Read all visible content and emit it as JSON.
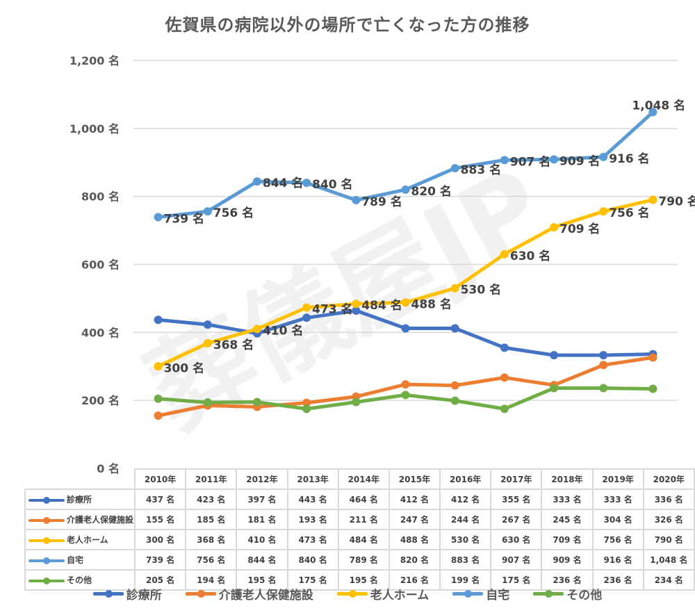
{
  "chart_data": {
    "type": "line",
    "title": "佐賀県の病院以外の場所で亡くなった方の推移",
    "xlabel": "",
    "ylabel": "",
    "unit": "名",
    "categories": [
      "2010年",
      "2011年",
      "2012年",
      "2013年",
      "2014年",
      "2015年",
      "2016年",
      "2017年",
      "2018年",
      "2019年",
      "2020年"
    ],
    "ylim": [
      0,
      1200
    ],
    "yticks": [
      0,
      200,
      400,
      600,
      800,
      1000,
      1200
    ],
    "ytick_labels": [
      "0 名",
      "200 名",
      "400 名",
      "600 名",
      "800 名",
      "1,000 名",
      "1,200 名"
    ],
    "grid": true,
    "legend_position": "bottom",
    "series": [
      {
        "name": "診療所",
        "color": "#4472C4",
        "values": [
          437,
          423,
          397,
          443,
          464,
          412,
          412,
          355,
          333,
          333,
          336
        ],
        "show_labels": false,
        "table_values": [
          "437 名",
          "423 名",
          "397 名",
          "443 名",
          "464 名",
          "412 名",
          "412 名",
          "355 名",
          "333 名",
          "333 名",
          "336 名"
        ]
      },
      {
        "name": "介護老人保健施設",
        "color": "#ED7D31",
        "values": [
          155,
          185,
          181,
          193,
          211,
          247,
          244,
          267,
          245,
          304,
          326
        ],
        "show_labels": false,
        "table_values": [
          "155 名",
          "185 名",
          "181 名",
          "193 名",
          "211 名",
          "247 名",
          "244 名",
          "267 名",
          "245 名",
          "304 名",
          "326 名"
        ]
      },
      {
        "name": "老人ホーム",
        "color": "#FFC000",
        "values": [
          300,
          368,
          410,
          473,
          484,
          488,
          530,
          630,
          709,
          756,
          790
        ],
        "show_labels": true,
        "table_values": [
          "300 名",
          "368 名",
          "410 名",
          "473 名",
          "484 名",
          "488 名",
          "530 名",
          "630 名",
          "709 名",
          "756 名",
          "790 名"
        ]
      },
      {
        "name": "自宅",
        "color": "#5B9BD5",
        "values": [
          739,
          756,
          844,
          840,
          789,
          820,
          883,
          907,
          909,
          916,
          1048
        ],
        "show_labels": true,
        "table_values": [
          "739 名",
          "756 名",
          "844 名",
          "840 名",
          "789 名",
          "820 名",
          "883 名",
          "907 名",
          "909 名",
          "916 名",
          "1,048 名"
        ]
      },
      {
        "name": "その他",
        "color": "#70AD47",
        "values": [
          205,
          194,
          195,
          175,
          195,
          216,
          199,
          175,
          236,
          236,
          234
        ],
        "show_labels": false,
        "table_values": [
          "205 名",
          "194 名",
          "195 名",
          "175 名",
          "195 名",
          "216 名",
          "199 名",
          "175 名",
          "236 名",
          "236 名",
          "234 名"
        ]
      }
    ],
    "data_labels": {
      "老人ホーム": [
        "300 名",
        "368 名",
        "410 名",
        "473 名",
        "484 名",
        "488 名",
        "530 名",
        "630 名",
        "709 名",
        "756 名",
        "790 名"
      ],
      "自宅": [
        "739 名",
        "756 名",
        "844 名",
        "840 名",
        "789 名",
        "820 名",
        "883 名",
        "907 名",
        "909 名",
        "916 名",
        "1,048 名"
      ]
    },
    "watermark": "葬儀屋JP"
  }
}
